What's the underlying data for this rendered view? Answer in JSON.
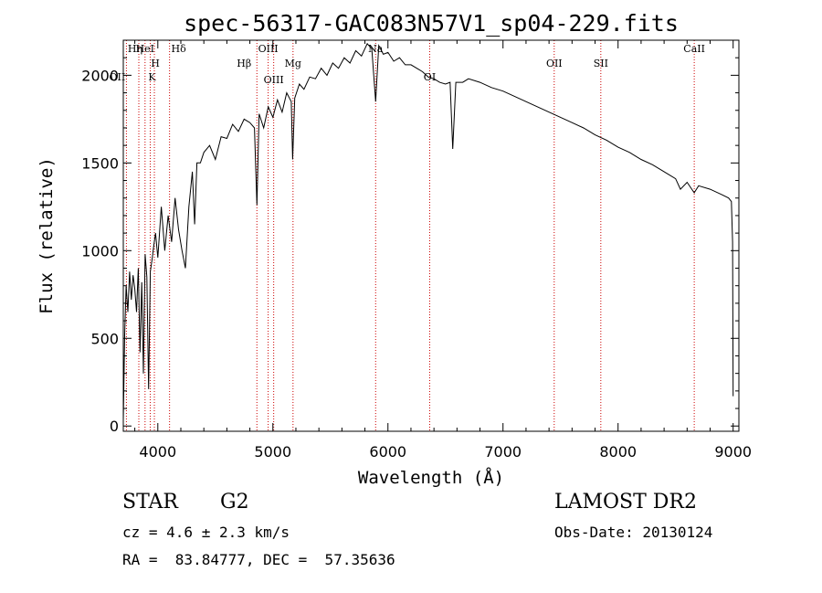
{
  "chart_data": {
    "type": "line",
    "title": "spec-56317-GAC083N57V1_sp04-229.fits",
    "xlabel": "Wavelength (Å)",
    "ylabel": "Flux (relative)",
    "xlim": [
      3700,
      9050
    ],
    "ylim": [
      -30,
      2200
    ],
    "xticks": [
      4000,
      5000,
      6000,
      7000,
      8000,
      9000
    ],
    "yticks": [
      0,
      500,
      1000,
      1500,
      2000
    ],
    "grid": false,
    "line_color": "#000000",
    "marker_color": "#cc0000",
    "series": [
      {
        "x": [
          3700,
          3712,
          3725,
          3740,
          3755,
          3770,
          3785,
          3800,
          3815,
          3830,
          3845,
          3860,
          3875,
          3890,
          3905,
          3920,
          3935,
          3950,
          3965,
          3980,
          4000,
          4030,
          4060,
          4090,
          4120,
          4150,
          4180,
          4210,
          4240,
          4270,
          4300,
          4320,
          4340,
          4370,
          4400,
          4450,
          4500,
          4550,
          4600,
          4650,
          4700,
          4750,
          4800,
          4840,
          4861,
          4880,
          4920,
          4960,
          5000,
          5040,
          5080,
          5120,
          5160,
          5172,
          5190,
          5230,
          5270,
          5320,
          5370,
          5420,
          5470,
          5520,
          5570,
          5620,
          5670,
          5720,
          5770,
          5820,
          5860,
          5893,
          5920,
          5960,
          6000,
          6050,
          6100,
          6150,
          6200,
          6250,
          6300,
          6350,
          6400,
          6450,
          6500,
          6540,
          6563,
          6590,
          6650,
          6700,
          6800,
          6900,
          7000,
          7100,
          7200,
          7300,
          7400,
          7500,
          7600,
          7700,
          7800,
          7900,
          8000,
          8100,
          8200,
          8300,
          8400,
          8500,
          8542,
          8600,
          8662,
          8700,
          8800,
          8900,
          8960,
          8985,
          8995,
          9000
        ],
        "values": [
          30,
          520,
          800,
          650,
          880,
          720,
          860,
          780,
          650,
          900,
          420,
          820,
          300,
          980,
          850,
          210,
          880,
          950,
          1030,
          1100,
          960,
          1250,
          1000,
          1200,
          1050,
          1300,
          1120,
          1000,
          900,
          1250,
          1450,
          1150,
          1500,
          1500,
          1560,
          1600,
          1520,
          1650,
          1640,
          1720,
          1680,
          1750,
          1730,
          1700,
          1260,
          1780,
          1700,
          1820,
          1760,
          1860,
          1790,
          1900,
          1850,
          1520,
          1870,
          1950,
          1920,
          1990,
          1980,
          2040,
          2000,
          2070,
          2040,
          2100,
          2070,
          2140,
          2110,
          2180,
          2150,
          1850,
          2170,
          2120,
          2130,
          2080,
          2100,
          2060,
          2060,
          2040,
          2020,
          1990,
          1980,
          1960,
          1950,
          1960,
          1580,
          1960,
          1960,
          1980,
          1960,
          1930,
          1910,
          1880,
          1850,
          1820,
          1790,
          1760,
          1730,
          1700,
          1660,
          1630,
          1590,
          1560,
          1520,
          1490,
          1450,
          1410,
          1350,
          1390,
          1330,
          1370,
          1350,
          1320,
          1300,
          1280,
          1050,
          170
        ]
      }
    ],
    "line_markers": [
      {
        "x": 3727,
        "label": "OII"
      },
      {
        "x": 3835,
        "label": "Hη"
      },
      {
        "x": 3889,
        "label": "HeI"
      },
      {
        "x": 3934,
        "label": "K"
      },
      {
        "x": 3970,
        "label": "H"
      },
      {
        "x": 4102,
        "label": "Hδ"
      },
      {
        "x": 4861,
        "label": "Hβ"
      },
      {
        "x": 4959,
        "label": "OIII"
      },
      {
        "x": 5007,
        "label": "OIII"
      },
      {
        "x": 5175,
        "label": "Mg"
      },
      {
        "x": 5893,
        "label": "Na"
      },
      {
        "x": 6363,
        "label": "OI"
      },
      {
        "x": 7445,
        "label": "OII"
      },
      {
        "x": 7850,
        "label": "SII"
      },
      {
        "x": 8662,
        "label": "CaII"
      }
    ]
  },
  "info": {
    "object_class": "STAR",
    "subclass": "G2",
    "survey": "LAMOST DR2",
    "redshift": "cz = 4.6 ± 2.3 km/s",
    "obs_date": "Obs-Date: 20130124",
    "coordinates": "RA =  83.84777, DEC =  57.35636"
  }
}
